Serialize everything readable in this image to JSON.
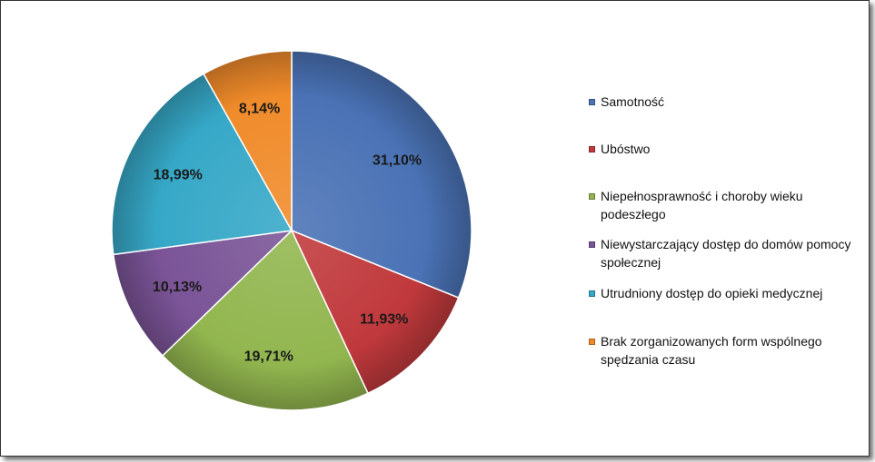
{
  "chart_data": {
    "type": "pie",
    "categories": [
      "Samotność",
      "Ubóstwo",
      "Niepełnosprawność i choroby wieku podeszłego",
      "Niewystarczający dostęp do domów pomocy społecznej",
      "Utrudniony dostęp do opieki medycznej",
      "Brak zorganizowanych form wspólnego spędzania czasu"
    ],
    "values": [
      31.1,
      11.93,
      19.71,
      10.13,
      18.99,
      8.14
    ],
    "value_labels": [
      "31,10%",
      "11,93%",
      "19,71%",
      "10,13%",
      "18,99%",
      "8,14%"
    ],
    "colors": [
      "#4a72b5",
      "#c0393c",
      "#92b64f",
      "#7a5497",
      "#36a8c7",
      "#f08b2a"
    ],
    "legend_position": "right"
  }
}
